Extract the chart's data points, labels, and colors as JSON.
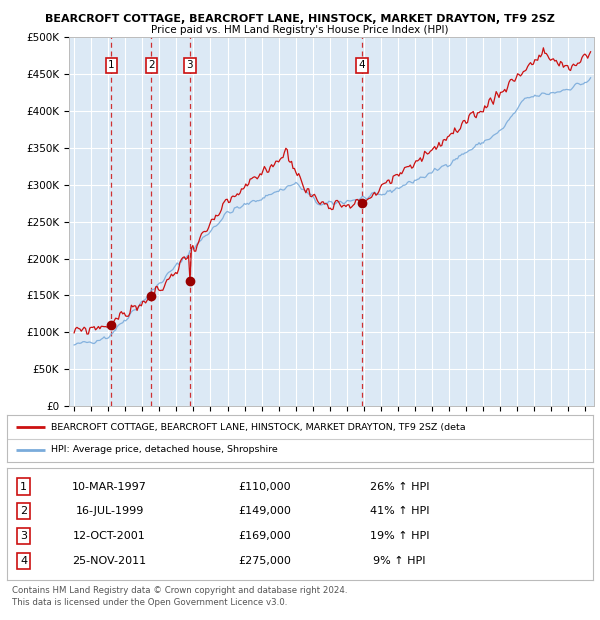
{
  "title1": "BEARCROFT COTTAGE, BEARCROFT LANE, HINSTOCK, MARKET DRAYTON, TF9 2SZ",
  "title2": "Price paid vs. HM Land Registry's House Price Index (HPI)",
  "ylabel_ticks": [
    "£0",
    "£50K",
    "£100K",
    "£150K",
    "£200K",
    "£250K",
    "£300K",
    "£350K",
    "£400K",
    "£450K",
    "£500K"
  ],
  "ytick_values": [
    0,
    50000,
    100000,
    150000,
    200000,
    250000,
    300000,
    350000,
    400000,
    450000,
    500000
  ],
  "xlim_start": 1994.7,
  "xlim_end": 2025.5,
  "ylim_min": 0,
  "ylim_max": 500000,
  "background_color": "#dce9f5",
  "grid_color": "#ffffff",
  "hpi_line_color": "#7aabdb",
  "price_line_color": "#cc1111",
  "sale_marker_color": "#990000",
  "vline_color": "#cc1111",
  "transactions": [
    {
      "num": 1,
      "date": "10-MAR-1997",
      "price": 110000,
      "year": 1997.19,
      "pct": "26%",
      "dir": "↑"
    },
    {
      "num": 2,
      "date": "16-JUL-1999",
      "price": 149000,
      "year": 1999.54,
      "pct": "41%",
      "dir": "↑"
    },
    {
      "num": 3,
      "date": "12-OCT-2001",
      "price": 169000,
      "year": 2001.78,
      "pct": "19%",
      "dir": "↑"
    },
    {
      "num": 4,
      "date": "25-NOV-2011",
      "price": 275000,
      "year": 2011.9,
      "pct": "9%",
      "dir": "↑"
    }
  ],
  "legend_label1": "BEARCROFT COTTAGE, BEARCROFT LANE, HINSTOCK, MARKET DRAYTON, TF9 2SZ (deta",
  "legend_label2": "HPI: Average price, detached house, Shropshire",
  "footer1": "Contains HM Land Registry data © Crown copyright and database right 2024.",
  "footer2": "This data is licensed under the Open Government Licence v3.0.",
  "sale_prices_exact": [
    110000,
    149000,
    169000,
    275000
  ],
  "sale_years_exact": [
    1997.19,
    1999.54,
    2001.78,
    2011.9
  ]
}
